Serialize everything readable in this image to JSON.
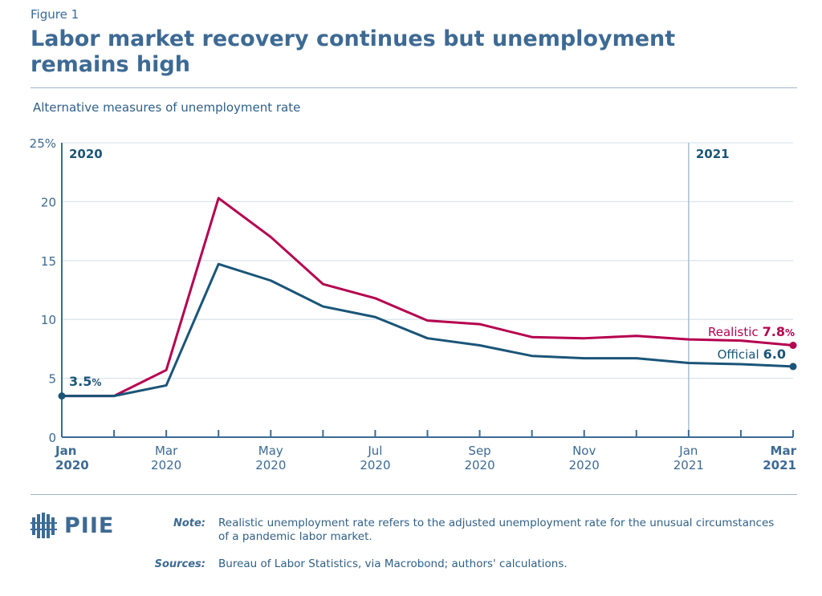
{
  "figure_label": "Figure 1",
  "title": "Labor market recovery continues but unemployment remains high",
  "colors": {
    "realistic": "#b5004f",
    "official": "#1a5578",
    "grid": "#dbe5ee",
    "text": "#3d6a94"
  },
  "chart_data": {
    "type": "line",
    "title": "Labor market recovery continues but unemployment remains high",
    "subtitle": "Alternative measures of unemployment rate",
    "xlabel": "",
    "ylabel": "",
    "x": [
      "Jan 2020",
      "Feb 2020",
      "Mar 2020",
      "Apr 2020",
      "May 2020",
      "Jun 2020",
      "Jul 2020",
      "Aug 2020",
      "Sep 2020",
      "Oct 2020",
      "Nov 2020",
      "Dec 2020",
      "Jan 2021",
      "Feb 2021",
      "Mar 2021"
    ],
    "x_tick_labels": [
      {
        "month": "Jan",
        "year": "2020",
        "index": 0,
        "bold": true
      },
      {
        "month": "Mar",
        "year": "2020",
        "index": 2,
        "bold": false
      },
      {
        "month": "May",
        "year": "2020",
        "index": 4,
        "bold": false
      },
      {
        "month": "Jul",
        "year": "2020",
        "index": 6,
        "bold": false
      },
      {
        "month": "Sep",
        "year": "2020",
        "index": 8,
        "bold": false
      },
      {
        "month": "Nov",
        "year": "2020",
        "index": 10,
        "bold": false
      },
      {
        "month": "Jan",
        "year": "2021",
        "index": 12,
        "bold": false
      },
      {
        "month": "Mar",
        "year": "2021",
        "index": 14,
        "bold": true
      }
    ],
    "ylim": [
      0,
      25
    ],
    "y_ticks": [
      "0",
      "5",
      "10",
      "15",
      "20",
      "25%"
    ],
    "y_tick_values": [
      0,
      5,
      10,
      15,
      20,
      25
    ],
    "grid": true,
    "year_markers": [
      {
        "label": "2020",
        "index": 0
      },
      {
        "label": "2021",
        "index": 12
      }
    ],
    "series": [
      {
        "name": "Realistic",
        "color": "#b5004f",
        "values": [
          3.5,
          3.5,
          5.7,
          20.3,
          17.0,
          13.0,
          11.8,
          9.9,
          9.6,
          8.5,
          8.4,
          8.6,
          8.3,
          8.2,
          7.8
        ],
        "end_label": "Realistic",
        "end_value": "7.8",
        "end_unit": "%"
      },
      {
        "name": "Official",
        "color": "#1a5578",
        "values": [
          3.5,
          3.5,
          4.4,
          14.7,
          13.3,
          11.1,
          10.2,
          8.4,
          7.8,
          6.9,
          6.7,
          6.7,
          6.3,
          6.2,
          6.0
        ],
        "end_label": "Official",
        "end_value": "6.0",
        "end_unit": ""
      }
    ],
    "start_annotation": {
      "value": "3.5",
      "unit": "%"
    }
  },
  "logo": "PIIE",
  "note": {
    "label": "Note:",
    "text": "Realistic unemployment rate refers to the adjusted unemployment rate for the unusual circumstances of a pandemic labor market."
  },
  "sources": {
    "label": "Sources:",
    "text": "Bureau of Labor Statistics, via Macrobond; authors' calculations."
  }
}
